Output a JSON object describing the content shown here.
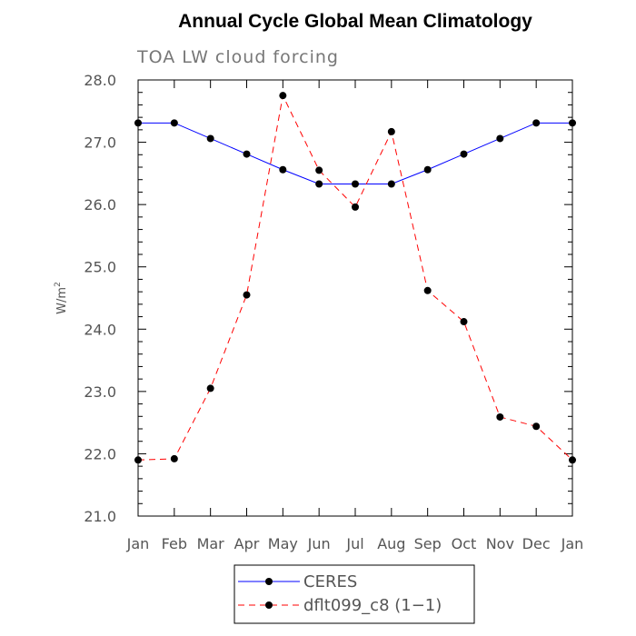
{
  "chart_data": {
    "type": "line",
    "title": "Annual Cycle Global Mean Climatology",
    "subtitle": "TOA LW cloud forcing",
    "ylabel": "W/m",
    "ylabel_superscript": "2",
    "xlabel": "",
    "categories": [
      "Jan",
      "Feb",
      "Mar",
      "Apr",
      "May",
      "Jun",
      "Jul",
      "Aug",
      "Sep",
      "Oct",
      "Nov",
      "Dec",
      "Jan"
    ],
    "ylim": [
      21.0,
      28.0
    ],
    "yticks": [
      "21.0",
      "22.0",
      "23.0",
      "24.0",
      "25.0",
      "26.0",
      "27.0",
      "28.0"
    ],
    "grid": false,
    "legend_position": "bottom",
    "series": [
      {
        "name": "CERES",
        "color": "#0000ff",
        "dash": "solid",
        "values": [
          27.31,
          27.31,
          27.06,
          26.81,
          26.56,
          26.33,
          26.33,
          26.33,
          26.56,
          26.81,
          27.06,
          27.31,
          27.31
        ]
      },
      {
        "name": "dflt099_c8 (1−1)",
        "color": "#ff0000",
        "dash": "dashed",
        "values": [
          21.9,
          21.92,
          23.05,
          24.55,
          27.75,
          26.55,
          25.96,
          27.17,
          24.62,
          24.12,
          22.59,
          22.44,
          21.9
        ]
      }
    ]
  }
}
